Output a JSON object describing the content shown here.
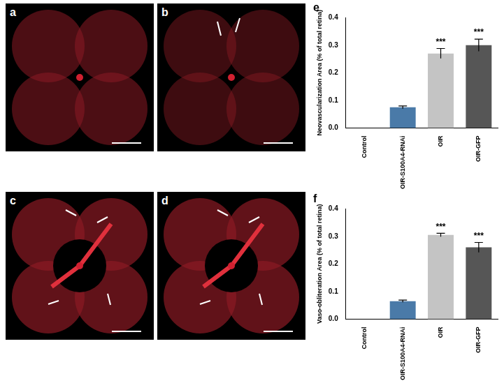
{
  "image_panels": [
    "a",
    "b",
    "c",
    "d"
  ],
  "chart_data": [
    {
      "type": "bar",
      "title": "e",
      "y_label": "Neovascularization Area (% of total retina)",
      "categories": [
        "Control",
        "OIR-S100A4-RNAi",
        "OIR",
        "OIR-GFP"
      ],
      "values": [
        0,
        0.075,
        0.27,
        0.3
      ],
      "errors": [
        0,
        0.005,
        0.018,
        0.022
      ],
      "annotations": [
        null,
        null,
        "***",
        "***"
      ],
      "colors": [
        "#ffffff",
        "#4a7aa8",
        "#c4c4c4",
        "#565656"
      ],
      "ylim": [
        0,
        0.4
      ],
      "yticks": [
        {
          "value": 0,
          "label": "0.0"
        },
        0.1,
        0.2,
        0.3,
        0.4
      ],
      "grid": false
    },
    {
      "type": "bar",
      "title": "f",
      "y_label": "Vaso-obliteration Area (% of total retina)",
      "categories": [
        "Control",
        "OIR-S100A4-RNAi",
        "OIR",
        "OIR-GFP"
      ],
      "values": [
        0,
        0.065,
        0.305,
        0.26
      ],
      "errors": [
        0,
        0.004,
        0.006,
        0.018
      ],
      "annotations": [
        null,
        null,
        "***",
        "***"
      ],
      "colors": [
        "#ffffff",
        "#4a7aa8",
        "#c4c4c4",
        "#565656"
      ],
      "ylim": [
        0,
        0.4
      ],
      "yticks": [
        {
          "value": 0,
          "label": "0.0"
        },
        0.1,
        0.2,
        0.3,
        0.4
      ],
      "grid": false
    }
  ]
}
